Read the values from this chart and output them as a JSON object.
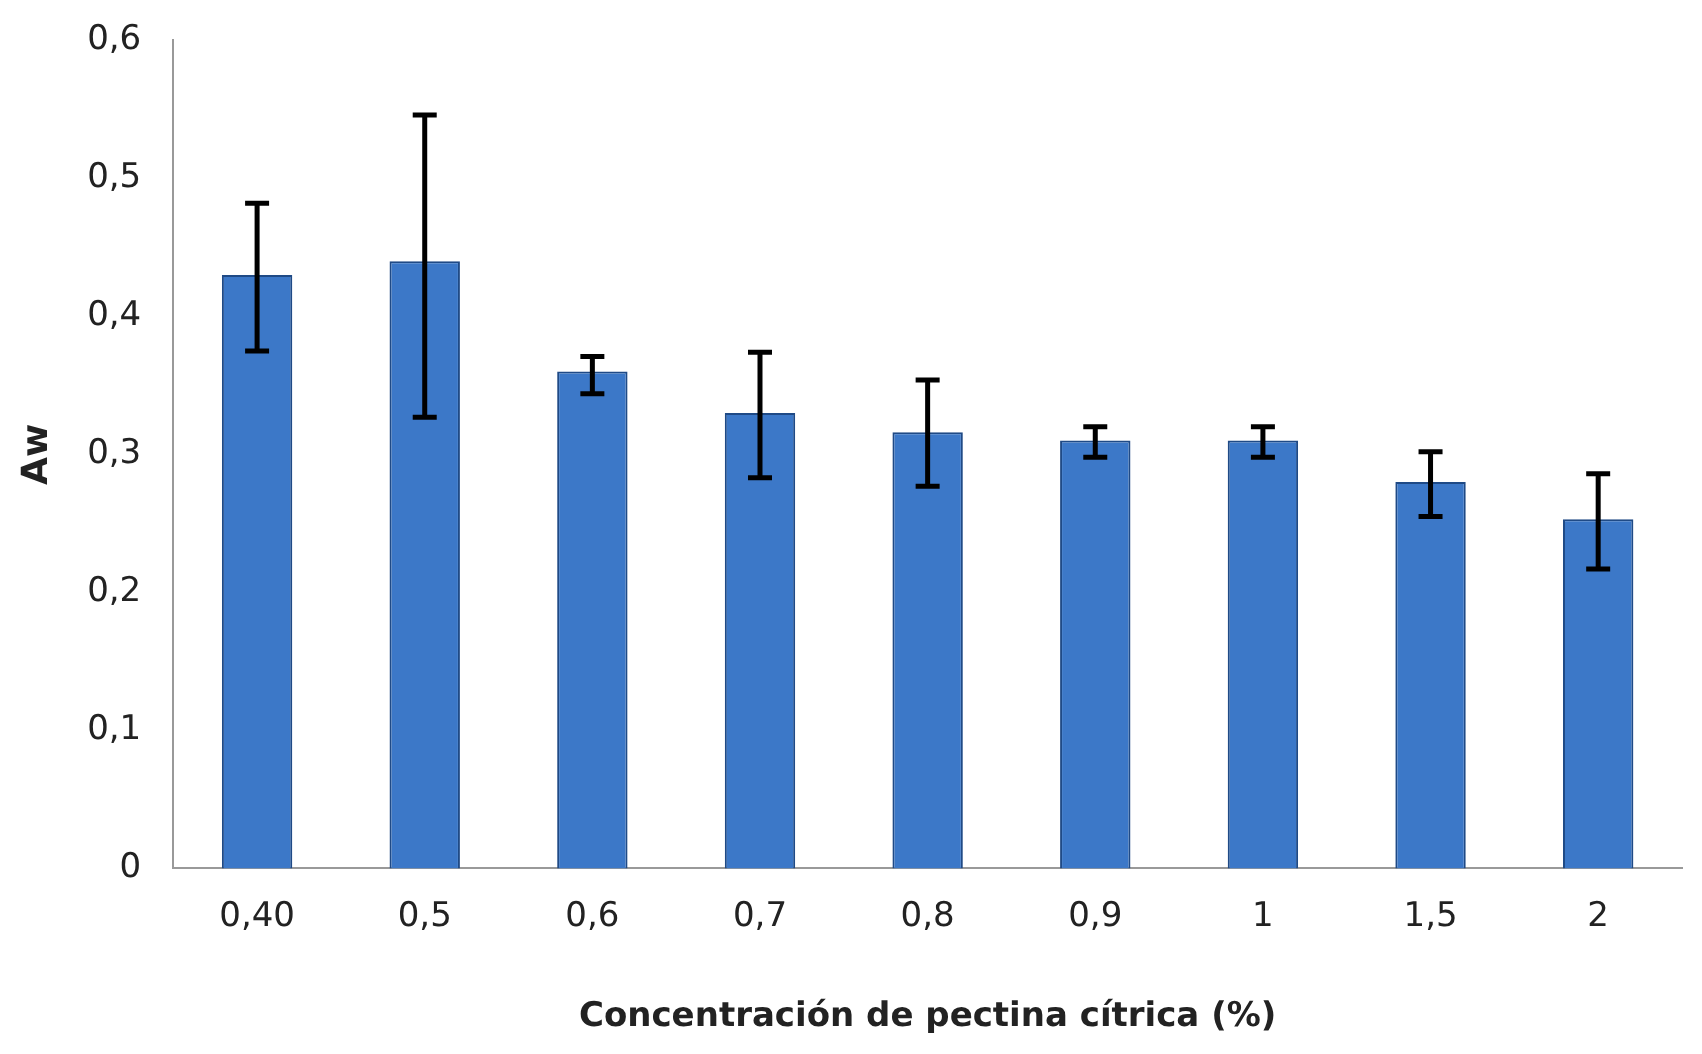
{
  "chart_data": {
    "type": "bar",
    "xlabel": "Concentración de pectina cítrica (%)",
    "ylabel": "Aw",
    "categories": [
      "0,40",
      "0,5",
      "0,6",
      "0,7",
      "0,8",
      "0,9",
      "1",
      "1,5",
      "2"
    ],
    "values": [
      0.43,
      0.44,
      0.36,
      0.33,
      0.316,
      0.31,
      0.31,
      0.28,
      0.253
    ],
    "errors": [
      [
        0.375,
        0.482
      ],
      [
        0.327,
        0.546
      ],
      [
        0.344,
        0.371
      ],
      [
        0.283,
        0.374
      ],
      [
        0.277,
        0.354
      ],
      [
        0.298,
        0.32
      ],
      [
        0.298,
        0.32
      ],
      [
        0.255,
        0.302
      ],
      [
        0.217,
        0.286
      ]
    ],
    "color": "#3c78c8",
    "ylim": [
      0,
      0.6
    ],
    "yticks": [
      {
        "value": 0,
        "label": "0"
      },
      {
        "value": 0.1,
        "label": "0,1"
      },
      {
        "value": 0.2,
        "label": "0,2"
      },
      {
        "value": 0.3,
        "label": "0,3"
      },
      {
        "value": 0.4,
        "label": "0,4"
      },
      {
        "value": 0.5,
        "label": "0,5"
      },
      {
        "value": 0.6,
        "label": "0,6"
      }
    ],
    "grid": false,
    "legend": false
  }
}
